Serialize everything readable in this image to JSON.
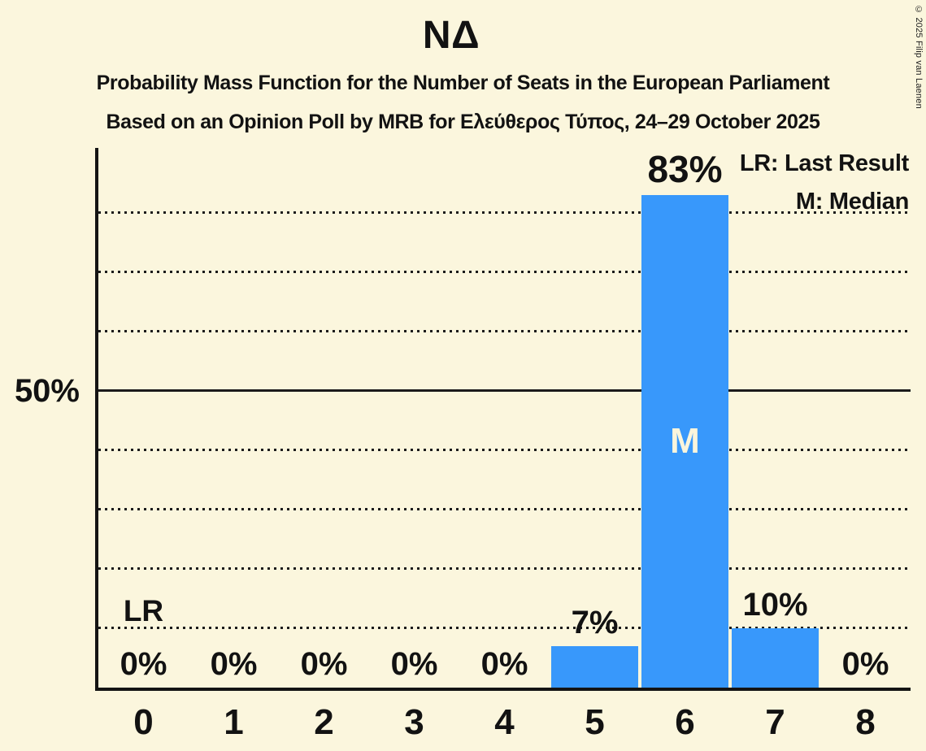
{
  "title": "ΝΔ",
  "subtitle_line1": "Probability Mass Function for the Number of Seats in the European Parliament",
  "subtitle_line2": "Based on an Opinion Poll by MRB for Ελεύθερος Τύπος, 24–29 October 2025",
  "copyright": "© 2025 Filip van Laenen",
  "legend": {
    "lr": "LR: Last Result",
    "m": "M: Median"
  },
  "chart_data": {
    "type": "bar",
    "title": "ΝΔ",
    "xlabel": "",
    "ylabel": "",
    "categories": [
      "0",
      "1",
      "2",
      "3",
      "4",
      "5",
      "6",
      "7",
      "8"
    ],
    "values": [
      0,
      0,
      0,
      0,
      0,
      7,
      83,
      10,
      0
    ],
    "value_labels": [
      "0%",
      "0%",
      "0%",
      "0%",
      "0%",
      "7%",
      "83%",
      "10%",
      "0%"
    ],
    "ylim": [
      0,
      91
    ],
    "y_axis_label_level": 50,
    "y_axis_label_text": "50%",
    "gridlines": {
      "dotted_levels": [
        10,
        20,
        30,
        40,
        60,
        70,
        80
      ],
      "solid_levels": [
        50
      ]
    },
    "legend_position": "top-right",
    "annotations": {
      "last_result": {
        "label": "LR",
        "category_index": 0,
        "sits_on_level": 10
      },
      "median": {
        "label": "M",
        "category_index": 6
      }
    },
    "colors": {
      "bar": "#3898fb",
      "background": "#fbf6dd",
      "text": "#121212",
      "median_text": "#faf5dc",
      "grid": "#1b1b1b"
    }
  }
}
